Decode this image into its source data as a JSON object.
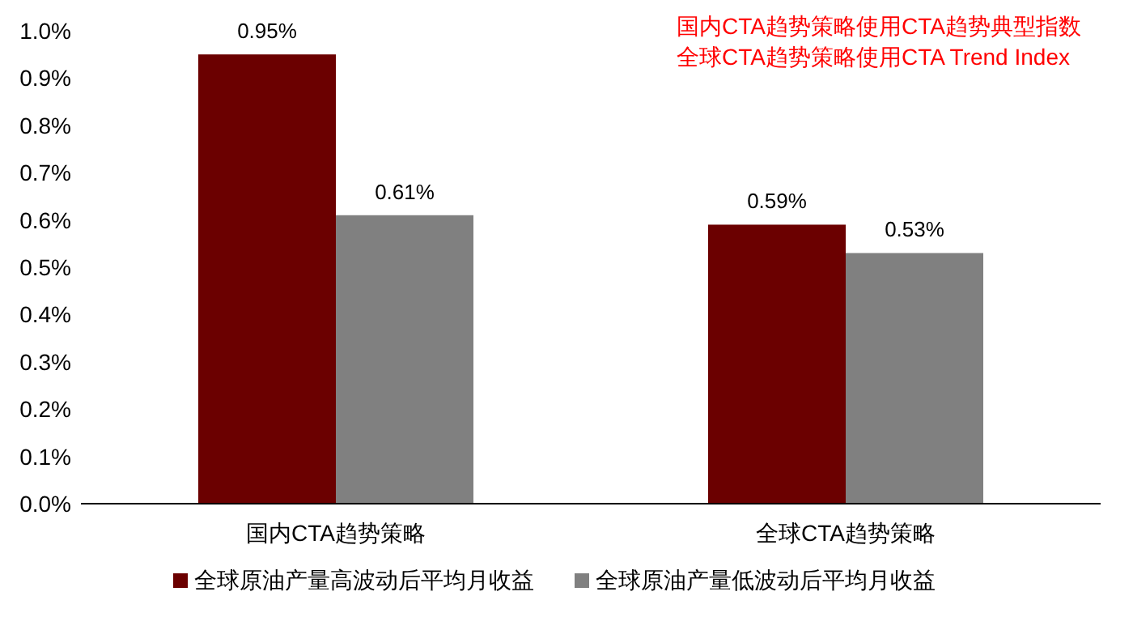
{
  "chart_data": {
    "type": "bar",
    "categories": [
      "国内CTA趋势策略",
      "全球CTA趋势策略"
    ],
    "series": [
      {
        "name": "全球原油产量高波动后平均月收益",
        "color": "#6b0000",
        "values": [
          0.95,
          0.59
        ],
        "value_labels": [
          "0.95%",
          "0.59%"
        ]
      },
      {
        "name": "全球原油产量低波动后平均月收益",
        "color": "#808080",
        "values": [
          0.61,
          0.53
        ],
        "value_labels": [
          "0.61%",
          "0.53%"
        ]
      }
    ],
    "ylim": [
      0,
      1.0
    ],
    "yticks": [
      {
        "value": 0,
        "label": "0.0%"
      },
      {
        "value": 0.1,
        "label": "0.1%"
      },
      {
        "value": 0.2,
        "label": "0.2%"
      },
      {
        "value": 0.3,
        "label": "0.3%"
      },
      {
        "value": 0.4,
        "label": "0.4%"
      },
      {
        "value": 0.5,
        "label": "0.5%"
      },
      {
        "value": 0.6,
        "label": "0.6%"
      },
      {
        "value": 0.7,
        "label": "0.7%"
      },
      {
        "value": 0.8,
        "label": "0.8%"
      },
      {
        "value": 0.9,
        "label": "0.9%"
      },
      {
        "value": 1.0,
        "label": "1.0%"
      }
    ],
    "annotations": [
      "国内CTA趋势策略使用CTA趋势典型指数",
      "全球CTA趋势策略使用CTA Trend Index"
    ],
    "grid": false,
    "legend": "bottom"
  }
}
